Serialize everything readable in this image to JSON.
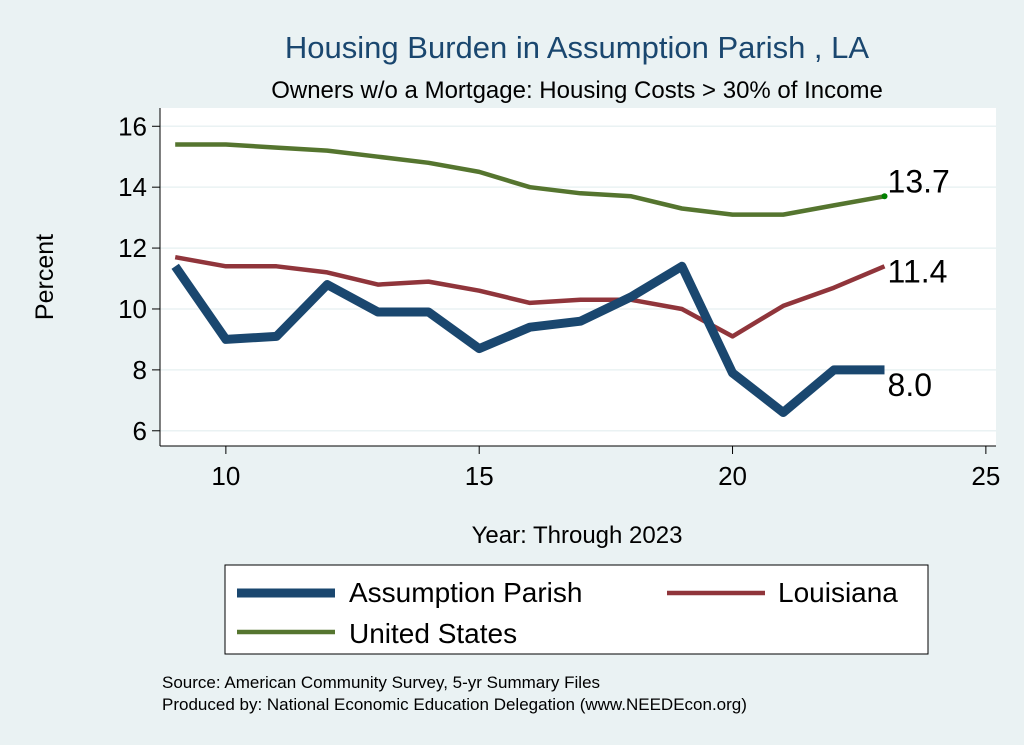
{
  "chart_data": {
    "type": "line",
    "title": "Housing Burden in Assumption Parish , LA",
    "subtitle": "Owners w/o a Mortgage: Housing Costs > 30% of Income",
    "xlabel": "Year: Through 2023",
    "ylabel": "Percent",
    "xlim": [
      8.7,
      25.2
    ],
    "ylim": [
      5.5,
      16.6
    ],
    "x_ticks": [
      10,
      15,
      20,
      25
    ],
    "y_ticks": [
      6,
      8,
      10,
      12,
      14,
      16
    ],
    "x_tick_labels": [
      "10",
      "15",
      "20",
      "25"
    ],
    "y_tick_labels": [
      "6",
      "8",
      "10",
      "12",
      "14",
      "16"
    ],
    "grid": true,
    "x": [
      9,
      10,
      11,
      12,
      13,
      14,
      15,
      16,
      17,
      18,
      19,
      20,
      21,
      22,
      23
    ],
    "series": [
      {
        "name": "Assumption Parish",
        "color": "#1a476f",
        "values": [
          11.4,
          9.0,
          9.1,
          10.8,
          9.9,
          9.9,
          8.7,
          9.4,
          9.6,
          10.4,
          11.4,
          7.9,
          6.6,
          8.0,
          8.0
        ],
        "end_label": "8.0"
      },
      {
        "name": "Louisiana",
        "color": "#90353b",
        "values": [
          11.7,
          11.4,
          11.4,
          11.2,
          10.8,
          10.9,
          10.6,
          10.2,
          10.3,
          10.3,
          10.0,
          9.1,
          10.1,
          10.7,
          11.4
        ],
        "end_label": "11.4"
      },
      {
        "name": "United States",
        "color": "#55752f",
        "values": [
          15.4,
          15.4,
          15.3,
          15.2,
          15.0,
          14.8,
          14.5,
          14.0,
          13.8,
          13.7,
          13.3,
          13.1,
          13.1,
          13.4,
          13.7
        ],
        "end_label": "13.7"
      }
    ],
    "legend": {
      "position": "bottom",
      "entries": [
        "Assumption Parish",
        "Louisiana",
        "United States"
      ]
    },
    "notes": [
      "Source: American Community Survey, 5-yr Summary Files",
      "Produced by: National Economic Education Delegation (www.NEEDEcon.org)"
    ]
  }
}
